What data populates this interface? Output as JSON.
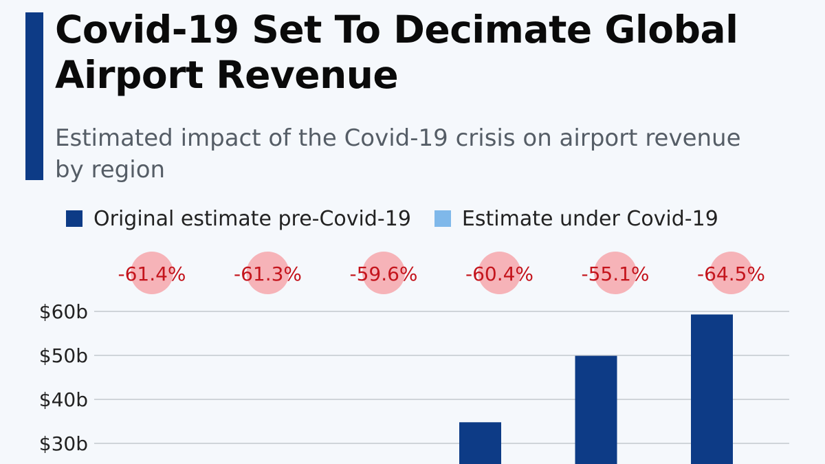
{
  "title": "Covid-19 Set To Decimate Global Airport Revenue",
  "subtitle": "Estimated impact of the Covid-19 crisis on airport revenue by region",
  "colors": {
    "accent": "#0d3b86",
    "original": "#0d3b86",
    "covid": "#7fb8ea",
    "pct_bubble": "#f6b3b8",
    "pct_text": "#c4141c",
    "grid": "#b9bec4"
  },
  "chart_data": {
    "type": "bar",
    "title": "Covid-19 Set To Decimate Global Airport Revenue",
    "subtitle": "Estimated impact of the Covid-19 crisis on airport revenue by region",
    "xlabel": "",
    "ylabel": "",
    "ylim": [
      0,
      60
    ],
    "yticks": [
      {
        "value": 60,
        "label": "$60b"
      },
      {
        "value": 50,
        "label": "$50b"
      },
      {
        "value": 40,
        "label": "$40b"
      },
      {
        "value": 30,
        "label": "$30b"
      }
    ],
    "legend_position": "top",
    "grid": true,
    "series": [
      {
        "name": "Original estimate pre-Covid-19",
        "color": "#0d3b86",
        "values": [
          null,
          null,
          null,
          34.8,
          49.9,
          59.3
        ]
      },
      {
        "name": "Estimate under Covid-19",
        "color": "#7fb8ea",
        "values": [
          null,
          null,
          null,
          null,
          null,
          null
        ]
      }
    ],
    "change_labels": [
      "-61.4%",
      "-61.3%",
      "-59.6%",
      "-60.4%",
      "-55.1%",
      "-64.5%"
    ]
  }
}
